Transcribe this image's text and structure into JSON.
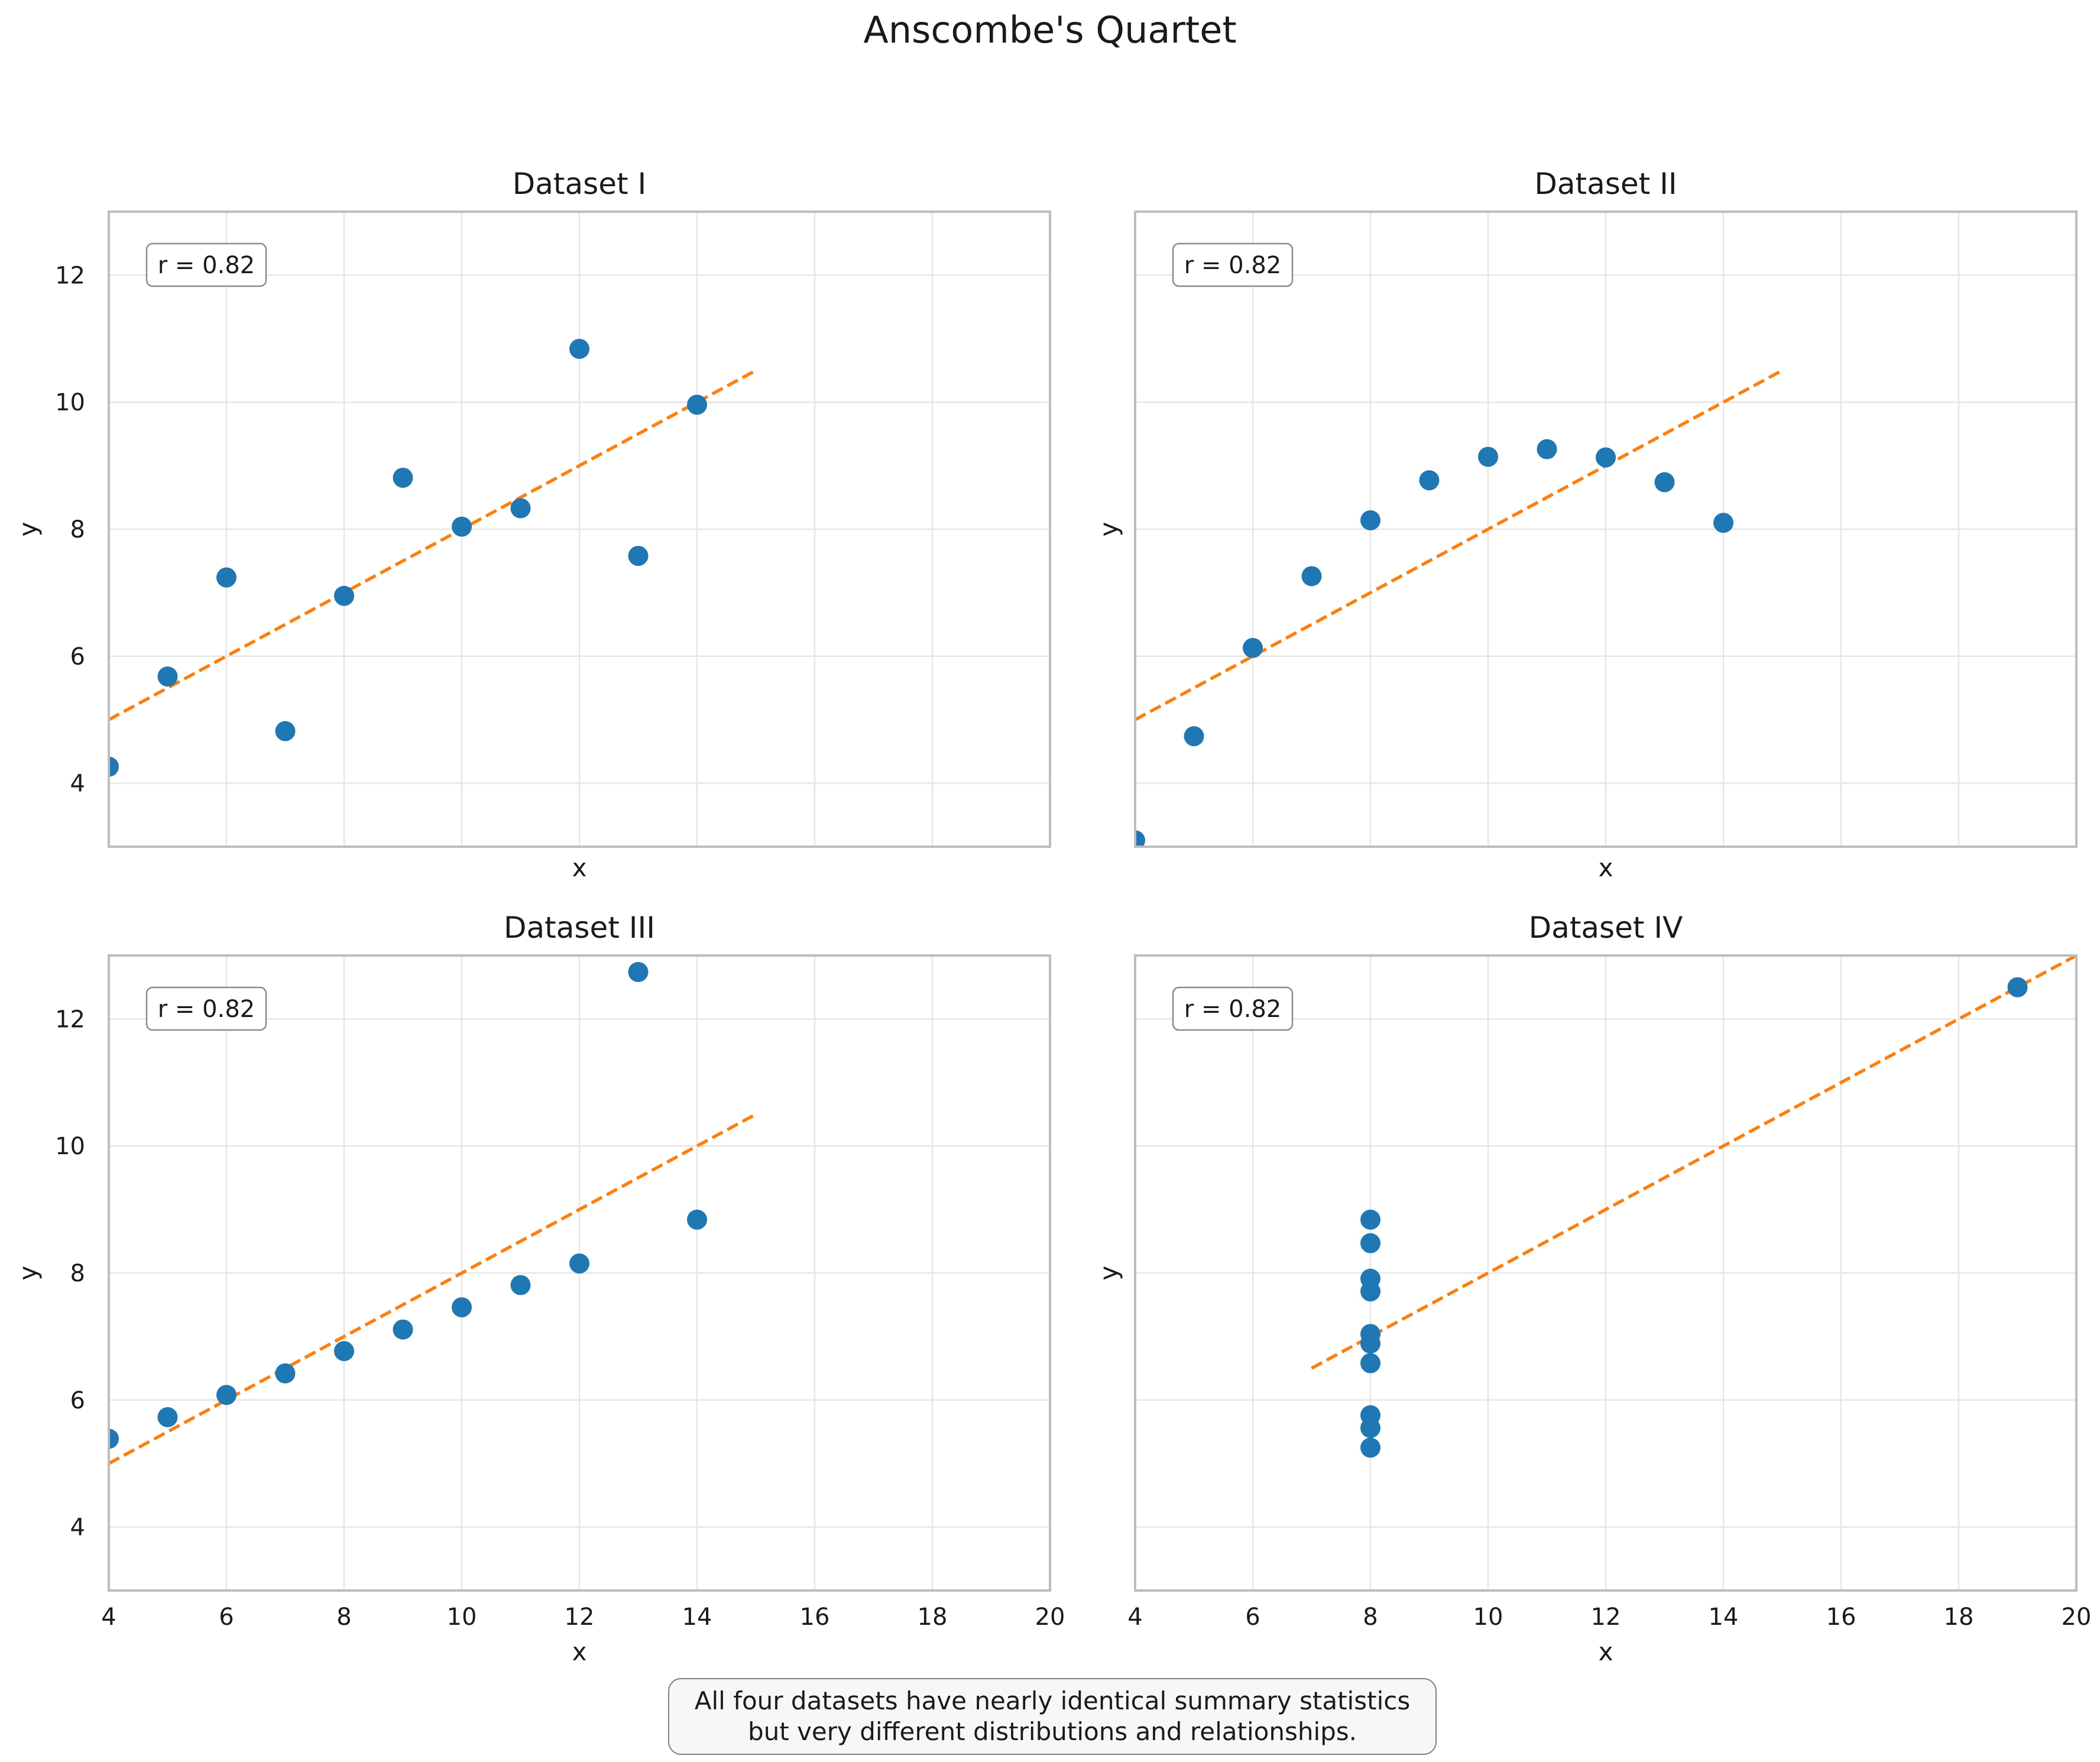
{
  "title": "Anscombe's Quartet",
  "colors": {
    "points": "#1f77b4",
    "fit": "#ff7f0e",
    "grid": "#e6e6e6",
    "frame": "#bdbdbd"
  },
  "chart_data": [
    {
      "type": "scatter",
      "title": "Dataset I",
      "annotation": "r = 0.82",
      "xlabel": "x",
      "ylabel": "y",
      "xlim": [
        4,
        20
      ],
      "ylim": [
        3,
        13
      ],
      "x_ticks": [
        4,
        6,
        8,
        10,
        12,
        14,
        16,
        18,
        20
      ],
      "y_ticks": [
        4,
        6,
        8,
        10,
        12
      ],
      "show_x_tick_labels": false,
      "show_y_tick_labels": true,
      "grid": true,
      "x": [
        10,
        8,
        13,
        9,
        11,
        14,
        6,
        4,
        12,
        7,
        5
      ],
      "y": [
        8.04,
        6.95,
        7.58,
        8.81,
        8.33,
        9.96,
        7.24,
        4.26,
        10.84,
        4.82,
        5.68
      ],
      "fit": {
        "x": [
          4,
          15
        ],
        "y": [
          5.0,
          10.5
        ],
        "style": "dashed"
      }
    },
    {
      "type": "scatter",
      "title": "Dataset II",
      "annotation": "r = 0.82",
      "xlabel": "x",
      "ylabel": "y",
      "xlim": [
        4,
        20
      ],
      "ylim": [
        3,
        13
      ],
      "x_ticks": [
        4,
        6,
        8,
        10,
        12,
        14,
        16,
        18,
        20
      ],
      "y_ticks": [
        4,
        6,
        8,
        10,
        12
      ],
      "show_x_tick_labels": false,
      "show_y_tick_labels": false,
      "grid": true,
      "x": [
        10,
        8,
        13,
        9,
        11,
        14,
        6,
        4,
        12,
        7,
        5
      ],
      "y": [
        9.14,
        8.14,
        8.74,
        8.77,
        9.26,
        8.1,
        6.13,
        3.1,
        9.13,
        7.26,
        4.74
      ],
      "fit": {
        "x": [
          4,
          15
        ],
        "y": [
          5.0,
          10.5
        ],
        "style": "dashed"
      }
    },
    {
      "type": "scatter",
      "title": "Dataset III",
      "annotation": "r = 0.82",
      "xlabel": "x",
      "ylabel": "y",
      "xlim": [
        4,
        20
      ],
      "ylim": [
        3,
        13
      ],
      "x_ticks": [
        4,
        6,
        8,
        10,
        12,
        14,
        16,
        18,
        20
      ],
      "y_ticks": [
        4,
        6,
        8,
        10,
        12
      ],
      "show_x_tick_labels": true,
      "show_y_tick_labels": true,
      "grid": true,
      "x": [
        10,
        8,
        13,
        9,
        11,
        14,
        6,
        4,
        12,
        7,
        5
      ],
      "y": [
        7.46,
        6.77,
        12.74,
        7.11,
        7.81,
        8.84,
        6.08,
        5.39,
        8.15,
        6.42,
        5.73
      ],
      "fit": {
        "x": [
          4,
          15
        ],
        "y": [
          5.0,
          10.5
        ],
        "style": "dashed"
      }
    },
    {
      "type": "scatter",
      "title": "Dataset IV",
      "annotation": "r = 0.82",
      "xlabel": "x",
      "ylabel": "y",
      "xlim": [
        4,
        20
      ],
      "ylim": [
        3,
        13
      ],
      "x_ticks": [
        4,
        6,
        8,
        10,
        12,
        14,
        16,
        18,
        20
      ],
      "y_ticks": [
        4,
        6,
        8,
        10,
        12
      ],
      "show_x_tick_labels": true,
      "show_y_tick_labels": false,
      "grid": true,
      "x": [
        8,
        8,
        8,
        8,
        8,
        8,
        8,
        19,
        8,
        8,
        8
      ],
      "y": [
        6.58,
        5.76,
        7.71,
        8.84,
        8.47,
        7.04,
        5.25,
        12.5,
        5.56,
        7.91,
        6.89
      ],
      "fit": {
        "x": [
          7,
          20
        ],
        "y": [
          6.5,
          13.0
        ],
        "style": "dashed"
      }
    }
  ],
  "note": {
    "line1": "All four datasets have nearly identical summary statistics",
    "line2": "but very different distributions and relationships."
  }
}
